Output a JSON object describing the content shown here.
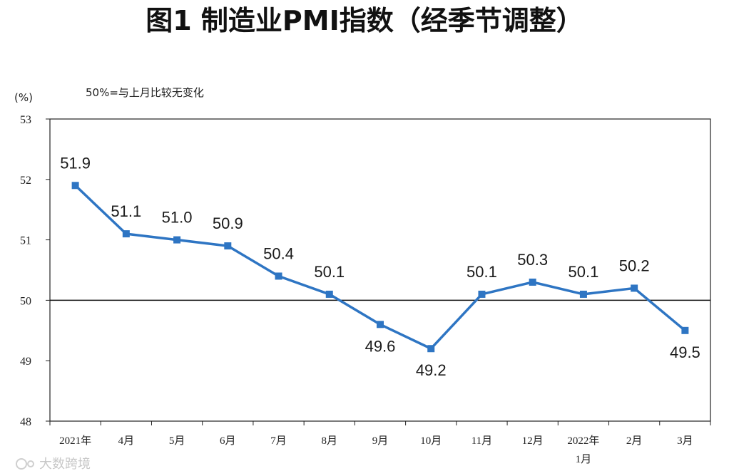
{
  "title": "图1 制造业PMI指数（经季节调整）",
  "watermark": "大数跨境",
  "colors": {
    "line": "#2e75c3",
    "axis": "#222222",
    "ref": "#111111"
  },
  "chart_data": {
    "type": "line",
    "y_unit": "(%)",
    "note": "50%=与上月比较无变化",
    "ylim": [
      48,
      53
    ],
    "yticks": [
      "48",
      "49",
      "50",
      "51",
      "52",
      "53"
    ],
    "reference_line": 50,
    "grid": false,
    "categories": [
      "2021年",
      "4月",
      "5月",
      "6月",
      "7月",
      "8月",
      "9月",
      "10月",
      "11月",
      "12月",
      "2022年\n1月",
      "2月",
      "3月"
    ],
    "series": [
      {
        "values": [
          51.9,
          51.1,
          51.0,
          50.9,
          50.4,
          50.1,
          49.6,
          49.2,
          50.1,
          50.3,
          50.1,
          50.2,
          49.5
        ]
      }
    ],
    "data_labels": [
      "51.9",
      "51.1",
      "51.0",
      "50.9",
      "50.4",
      "50.1",
      "49.6",
      "49.2",
      "50.1",
      "50.3",
      "50.1",
      "50.2",
      "49.5"
    ],
    "label_placement": [
      "above",
      "above",
      "above",
      "above",
      "above",
      "above",
      "below",
      "below",
      "above",
      "above",
      "above",
      "above",
      "below"
    ]
  }
}
